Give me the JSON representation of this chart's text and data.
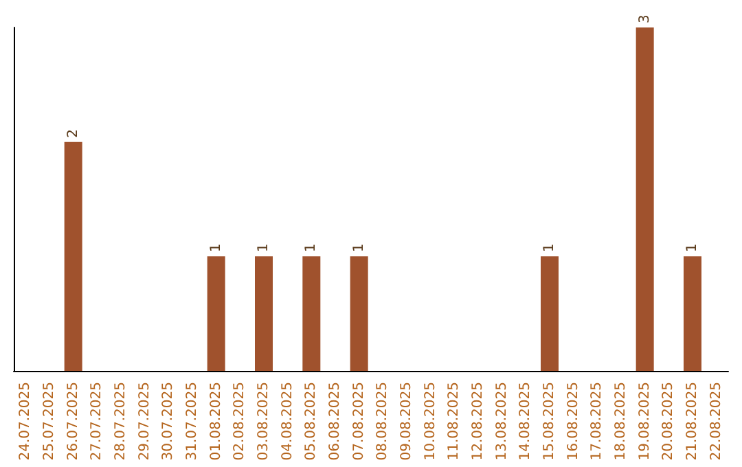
{
  "chart_data": {
    "type": "bar",
    "categories": [
      "24.07.2025",
      "25.07.2025",
      "26.07.2025",
      "27.07.2025",
      "28.07.2025",
      "29.07.2025",
      "30.07.2025",
      "31.07.2025",
      "01.08.2025",
      "02.08.2025",
      "03.08.2025",
      "04.08.2025",
      "05.08.2025",
      "06.08.2025",
      "07.08.2025",
      "08.08.2025",
      "09.08.2025",
      "10.08.2025",
      "11.08.2025",
      "12.08.2025",
      "13.08.2025",
      "14.08.2025",
      "15.08.2025",
      "16.08.2025",
      "17.08.2025",
      "18.08.2025",
      "19.08.2025",
      "20.08.2025",
      "21.08.2025",
      "22.08.2025"
    ],
    "values": [
      null,
      null,
      2,
      null,
      null,
      null,
      null,
      null,
      1,
      null,
      1,
      null,
      1,
      null,
      1,
      null,
      null,
      null,
      null,
      null,
      null,
      null,
      1,
      null,
      null,
      null,
      3,
      null,
      1,
      null
    ],
    "color": "#a0522d",
    "data_labels": true,
    "tick_labels": "x"
  }
}
